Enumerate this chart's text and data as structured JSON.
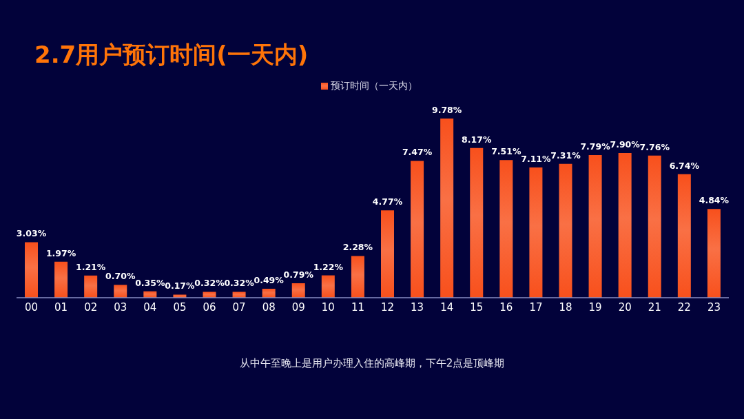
{
  "chart_data": {
    "type": "bar",
    "title": "2.7用户预订时间(一天内)",
    "categories": [
      "00",
      "01",
      "02",
      "03",
      "04",
      "05",
      "06",
      "07",
      "08",
      "09",
      "10",
      "11",
      "12",
      "13",
      "14",
      "15",
      "16",
      "17",
      "18",
      "19",
      "20",
      "21",
      "22",
      "23"
    ],
    "series": [
      {
        "name": "预订时间（一天内）",
        "color": "#f8501c",
        "values": [
          3.03,
          1.97,
          1.21,
          0.7,
          0.35,
          0.17,
          0.32,
          0.32,
          0.49,
          0.79,
          1.22,
          2.28,
          4.77,
          7.47,
          9.78,
          8.17,
          7.51,
          7.11,
          7.31,
          7.79,
          7.9,
          7.76,
          6.74,
          4.84
        ],
        "value_labels": [
          "3.03%",
          "1.97%",
          "1.21%",
          "0.70%",
          "0.35%",
          "0.17%",
          "0.32%",
          "0.32%",
          "0.49%",
          "0.79%",
          "1.22%",
          "2.28%",
          "4.77%",
          "7.47%",
          "9.78%",
          "8.17%",
          "7.51%",
          "7.11%",
          "7.31%",
          "7.79%",
          "7.90%",
          "7.76%",
          "6.74%",
          "4.84%"
        ]
      }
    ],
    "legend": "top",
    "tick_labels": "x",
    "annotations": [
      "从中午至晚上是用户办理入住的高峰期，下午2点是顶峰期"
    ]
  }
}
